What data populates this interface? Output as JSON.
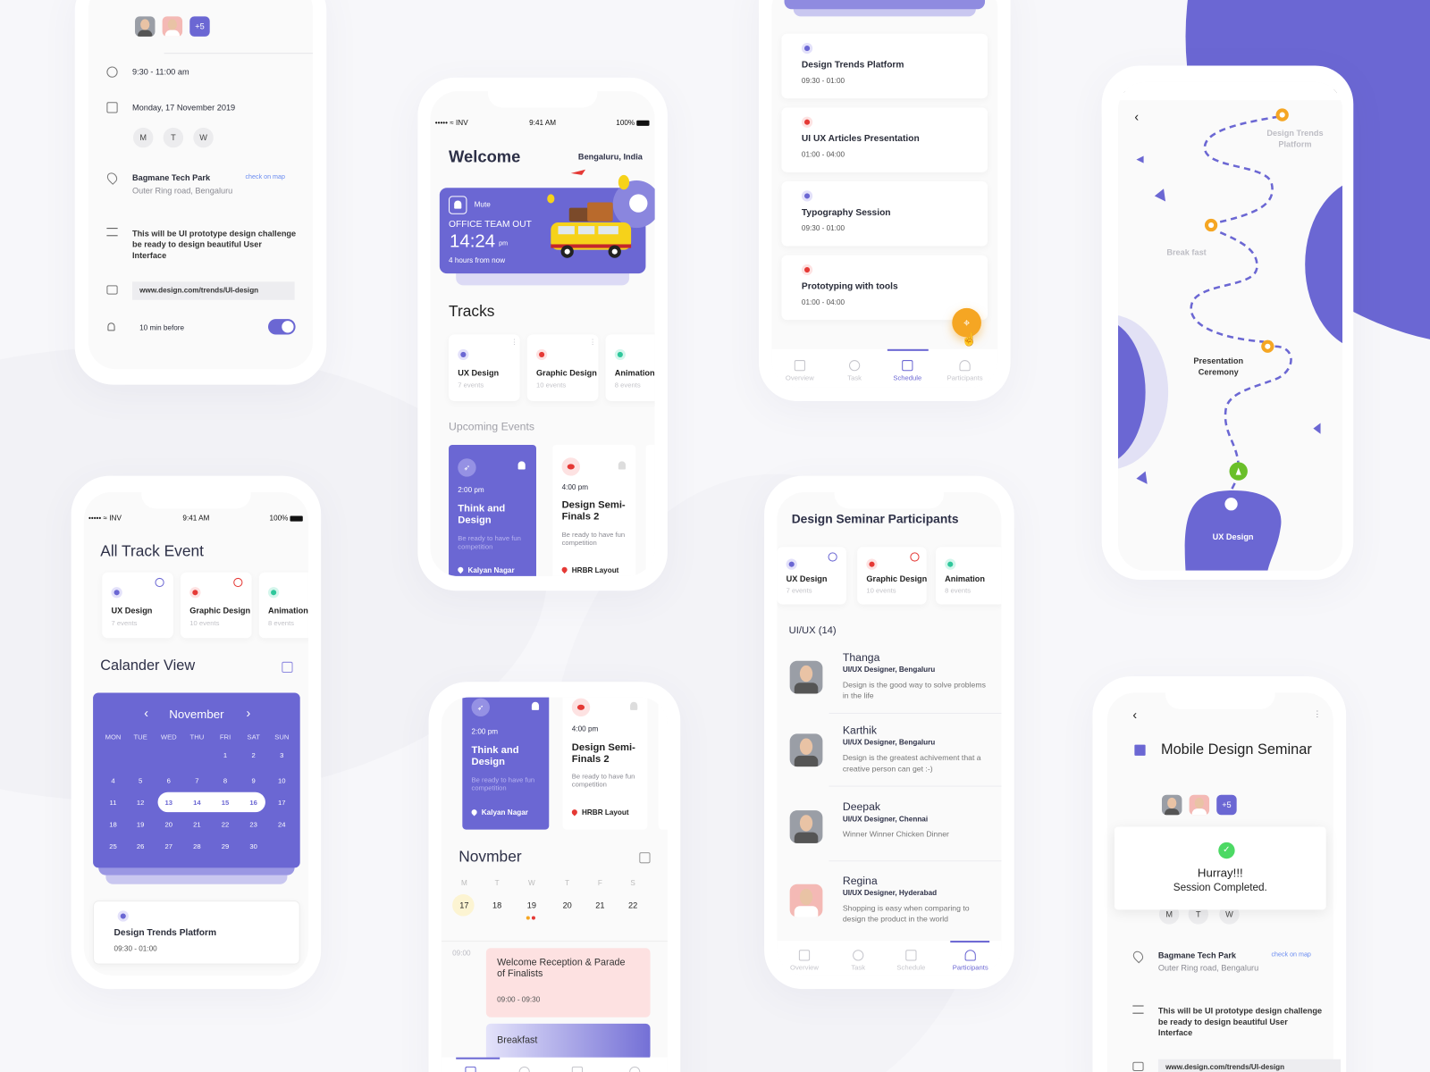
{
  "colors": {
    "accent": "#6b67d3",
    "orange": "#f5a623",
    "red": "#e53935",
    "green": "#4cd964",
    "teal": "#2fc79b"
  },
  "status_bar": {
    "carrier": "••••• ≈ INV",
    "time": "9:41 AM",
    "battery": "100%"
  },
  "event_detail": {
    "avatars_more": "+5",
    "time": "9:30 - 11:00 am",
    "date": "Monday, 17 November 2019",
    "days": [
      "M",
      "T",
      "W"
    ],
    "venue": "Bagmane Tech Park",
    "map_link": "check on map",
    "address": "Outer Ring road, Bengaluru",
    "description": "This will be UI prototype design challenge be ready to design beautiful User Interface",
    "url": "www.design.com/trends/UI-design",
    "reminder": "10 min before",
    "reminder_on": true
  },
  "welcome": {
    "title": "Welcome",
    "location": "Bengaluru, India",
    "banner": {
      "mute": "Mute",
      "title": "OFFICE TEAM OUT",
      "time": "14:24",
      "meridiem": "pm",
      "subtitle": "4 hours from now"
    },
    "tracks_heading": "Tracks",
    "upcoming_heading": "Upcoming Events"
  },
  "tracks": [
    {
      "name": "UX Design",
      "count": "7 events",
      "icon": "brain-icon"
    },
    {
      "name": "Graphic Design",
      "count": "10 events",
      "icon": "paint-icon"
    },
    {
      "name": "Animation",
      "count": "8 events",
      "icon": "animation-icon"
    }
  ],
  "upcoming_events": [
    {
      "time": "2:00 pm",
      "title": "Think and Design",
      "desc": "Be ready to have fun competition",
      "location": "Kalyan Nagar",
      "icon": "rocket-icon"
    },
    {
      "time": "4:00 pm",
      "title": "Design Semi-Finals 2",
      "desc": "Be ready to have fun competition",
      "location": "HRBR Layout",
      "icon": "paint-icon"
    }
  ],
  "schedule": {
    "items": [
      {
        "title": "Design Trends Platform",
        "time": "09:30 - 01:00",
        "track": "ux"
      },
      {
        "title": "UI UX Articles Presentation",
        "time": "01:00 - 04:00",
        "track": "graphic"
      },
      {
        "title": "Typography Session",
        "time": "09:30 - 01:00",
        "track": "ux"
      },
      {
        "title": "Prototyping with tools",
        "time": "01:00 - 04:00",
        "track": "graphic"
      }
    ],
    "active_tab": "Schedule"
  },
  "tabs": [
    "Overview",
    "Task",
    "Schedule",
    "Participants"
  ],
  "map": {
    "stops": [
      "Design Trends Platform",
      "Break fast",
      "Presentation Ceremony",
      "UX Design"
    ]
  },
  "all_tracks": {
    "title": "All Track Event",
    "calendar_heading": "Calander View",
    "calendar": {
      "month": "November",
      "weekdays": [
        "MON",
        "TUE",
        "WED",
        "THU",
        "FRI",
        "SAT",
        "SUN"
      ],
      "weeks": [
        [
          "",
          "",
          "",
          "",
          "1",
          "2",
          "3"
        ],
        [
          "4",
          "5",
          "6",
          "7",
          "8",
          "9",
          "10"
        ],
        [
          "11",
          "12",
          "13",
          "14",
          "15",
          "16",
          "17"
        ],
        [
          "18",
          "19",
          "20",
          "21",
          "22",
          "23",
          "24"
        ],
        [
          "25",
          "26",
          "27",
          "28",
          "29",
          "30",
          ""
        ]
      ],
      "selected_range": [
        "13",
        "16"
      ]
    },
    "next_event": {
      "title": "Design Trends Platform",
      "time": "09:30 - 01:00"
    }
  },
  "week_view": {
    "month": "Novmber",
    "weekdays": [
      "M",
      "T",
      "W",
      "T",
      "F",
      "S"
    ],
    "dates": [
      "17",
      "18",
      "19",
      "20",
      "21",
      "22"
    ],
    "today": "17",
    "agenda": [
      {
        "time": "09:00",
        "title": "Welcome Reception & Parade of Finalists",
        "range": "09:00 - 09:30"
      },
      {
        "title": "Breakfast"
      }
    ],
    "active_tab": "Overview"
  },
  "participants": {
    "title": "Design Seminar Participants",
    "group": "UI/UX (14)",
    "people": [
      {
        "name": "Thanga",
        "role": "UI/UX Designer, Bengaluru",
        "quote": "Design is the good way to solve problems in the life"
      },
      {
        "name": "Karthik",
        "role": "UI/UX Designer, Bengaluru",
        "quote": "Design is the greatest achivement that a creative person can get :-)"
      },
      {
        "name": "Deepak",
        "role": "UI/UX Designer, Chennai",
        "quote": "Winner Winner Chicken Dinner"
      },
      {
        "name": "Regina",
        "role": "UI/UX Designer, Hyderabad",
        "quote": "Shopping is easy when comparing to design the product in the world"
      }
    ],
    "active_tab": "Participants"
  },
  "seminar": {
    "title": "Mobile Design Seminar",
    "avatars_more": "+5",
    "toast_title": "Hurray!!!",
    "toast_message": "Session Completed.",
    "days": [
      "M",
      "T",
      "W"
    ],
    "venue": "Bagmane Tech Park",
    "map_link": "check on map",
    "address": "Outer Ring road, Bengaluru",
    "description": "This will be UI prototype design challenge be ready to design beautiful User Interface",
    "url": "www.design.com/trends/UI-design"
  }
}
